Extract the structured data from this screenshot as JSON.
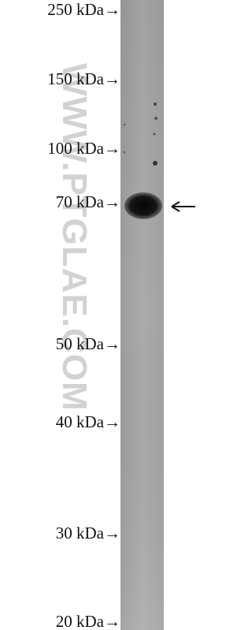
{
  "markers": [
    "250 kDa→",
    "150 kDa→",
    "100 kDa→",
    "70 kDa→",
    "50 kDa→",
    "40 kDa→",
    "30 kDa→",
    "20 kDa→"
  ],
  "watermark": "WWW.PTGLAE.COM"
}
